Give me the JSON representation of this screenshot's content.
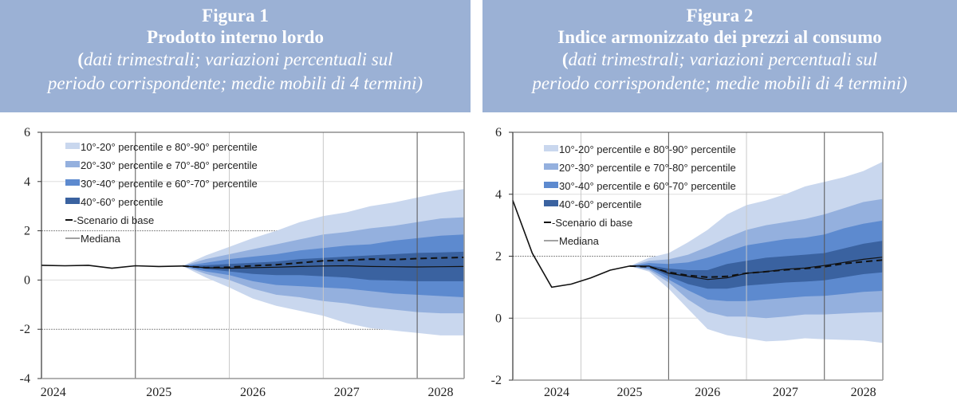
{
  "figures": [
    {
      "figure_label": "Figura 1",
      "title": "Prodotto interno lordo",
      "subtitle_line1": "dati trimestrali; variazioni percentuali sul",
      "subtitle_line2": "periodo corrispondente; medie mobili di 4 termini)"
    },
    {
      "figure_label": "Figura 2",
      "title": "Indice armonizzato dei prezzi al consumo",
      "subtitle_line1": "dati trimestrali; variazioni percentuali sul",
      "subtitle_line2": "periodo corrispondente; medie mobili di 4 termini)"
    }
  ],
  "colors": {
    "title_bg": "#9bb1d5",
    "band_10_20": "#c9d7ee",
    "band_20_30": "#94b0de",
    "band_30_40": "#5d8acf",
    "band_40_60": "#3a62a0",
    "line": "#111111"
  },
  "chart_data": [
    {
      "type": "area",
      "title": "Prodotto interno lordo",
      "xlabel": "",
      "ylabel": "",
      "ylim": [
        -4,
        6
      ],
      "yticks": [
        "-4",
        "-2",
        "0",
        "2",
        "4",
        "6"
      ],
      "xticks": [
        "2024",
        "2025",
        "2026",
        "2027",
        "2028"
      ],
      "grid": true,
      "legend_position": "top-left",
      "legend": [
        "10°-20° percentile e 80°-90° percentile",
        "20°-30° percentile e 70°-80° percentile",
        "30°-40° percentile e 60°-70° percentile",
        "40°-60° percentile",
        "- -Scenario di base",
        "Mediana"
      ],
      "x": [
        "2024Q2",
        "2024Q3",
        "2024Q4",
        "2025Q1",
        "2025Q2",
        "2025Q3",
        "2025Q4",
        "2026Q1",
        "2026Q2",
        "2026Q3",
        "2026Q4",
        "2027Q1",
        "2027Q2",
        "2027Q3",
        "2027Q4",
        "2028Q1",
        "2028Q2",
        "2028Q3",
        "2028Q4"
      ],
      "history": [
        0.6,
        0.58,
        0.6,
        0.48,
        0.58,
        0.55,
        0.57
      ],
      "fan_start_index": 6,
      "fan": {
        "p10": [
          0.57,
          0.1,
          -0.3,
          -0.75,
          -1.05,
          -1.25,
          -1.45,
          -1.75,
          -1.95,
          -2.05,
          -2.15,
          -2.25,
          -2.25
        ],
        "p20": [
          0.57,
          0.25,
          0.0,
          -0.35,
          -0.6,
          -0.7,
          -0.85,
          -0.95,
          -1.1,
          -1.2,
          -1.3,
          -1.35,
          -1.35
        ],
        "p30": [
          0.57,
          0.35,
          0.2,
          -0.05,
          -0.2,
          -0.25,
          -0.3,
          -0.35,
          -0.45,
          -0.55,
          -0.6,
          -0.65,
          -0.7
        ],
        "p40": [
          0.57,
          0.45,
          0.35,
          0.25,
          0.2,
          0.2,
          0.15,
          0.1,
          0.0,
          -0.02,
          -0.05,
          -0.05,
          -0.05
        ],
        "p60": [
          0.57,
          0.6,
          0.65,
          0.7,
          0.75,
          0.85,
          0.9,
          0.95,
          1.0,
          1.05,
          1.1,
          1.12,
          1.15
        ],
        "p70": [
          0.57,
          0.7,
          0.85,
          0.95,
          1.05,
          1.2,
          1.3,
          1.4,
          1.45,
          1.6,
          1.7,
          1.8,
          1.85
        ],
        "p80": [
          0.57,
          0.85,
          1.05,
          1.25,
          1.45,
          1.65,
          1.85,
          1.95,
          2.1,
          2.2,
          2.35,
          2.5,
          2.55
        ],
        "p90": [
          0.57,
          1.0,
          1.35,
          1.7,
          2.0,
          2.35,
          2.6,
          2.75,
          3.0,
          3.15,
          3.35,
          3.55,
          3.7
        ],
        "median": [
          0.57,
          0.5,
          0.48,
          0.5,
          0.52,
          0.55,
          0.57,
          0.58,
          0.55,
          0.54,
          0.53,
          0.54,
          0.55
        ],
        "base": [
          0.57,
          0.5,
          0.52,
          0.58,
          0.62,
          0.7,
          0.78,
          0.8,
          0.85,
          0.83,
          0.87,
          0.9,
          0.92
        ]
      }
    },
    {
      "type": "area",
      "title": "Indice armonizzato dei prezzi al consumo",
      "xlabel": "",
      "ylabel": "",
      "ylim": [
        -2,
        6
      ],
      "yticks": [
        "-2",
        "0",
        "2",
        "4",
        "6"
      ],
      "xticks": [
        "2024",
        "2025",
        "2026",
        "2027",
        "2028"
      ],
      "grid": true,
      "legend_position": "top-left",
      "legend": [
        "10°-20° percentile e 80°-90° percentile",
        "20°-30° percentile e 70°-80° percentile",
        "30°-40° percentile e 60°-70° percentile",
        "40°-60° percentile",
        "- -Scenario di base",
        "Mediana"
      ],
      "x": [
        "2024Q1",
        "2024Q2",
        "2024Q3",
        "2024Q4",
        "2025Q1",
        "2025Q2",
        "2025Q3",
        "2025Q4",
        "2026Q1",
        "2026Q2",
        "2026Q3",
        "2026Q4",
        "2027Q1",
        "2027Q2",
        "2027Q3",
        "2027Q4",
        "2028Q1",
        "2028Q2",
        "2028Q3",
        "2028Q4"
      ],
      "history": [
        3.8,
        2.1,
        1.0,
        1.1,
        1.3,
        1.55,
        1.68
      ],
      "fan_start_index": 6,
      "fan": {
        "p10": [
          1.68,
          1.5,
          0.95,
          0.3,
          -0.35,
          -0.55,
          -0.65,
          -0.75,
          -0.72,
          -0.65,
          -0.68,
          -0.7,
          -0.72,
          -0.8
        ],
        "p20": [
          1.68,
          1.55,
          1.15,
          0.6,
          0.2,
          0.05,
          0.05,
          0.0,
          0.05,
          0.12,
          0.12,
          0.15,
          0.18,
          0.2
        ],
        "p30": [
          1.68,
          1.6,
          1.25,
          0.9,
          0.6,
          0.55,
          0.55,
          0.6,
          0.65,
          0.7,
          0.72,
          0.78,
          0.85,
          0.88
        ],
        "p40": [
          1.68,
          1.65,
          1.35,
          1.1,
          0.95,
          0.95,
          1.05,
          1.1,
          1.15,
          1.18,
          1.22,
          1.32,
          1.42,
          1.48
        ],
        "p60": [
          1.68,
          1.7,
          1.6,
          1.55,
          1.55,
          1.75,
          1.85,
          1.95,
          2.0,
          2.05,
          2.1,
          2.25,
          2.4,
          2.5
        ],
        "p70": [
          1.68,
          1.78,
          1.75,
          1.8,
          1.95,
          2.15,
          2.35,
          2.45,
          2.55,
          2.6,
          2.7,
          2.9,
          3.05,
          3.15
        ],
        "p80": [
          1.68,
          1.85,
          1.9,
          2.05,
          2.3,
          2.6,
          2.85,
          3.0,
          3.1,
          3.2,
          3.35,
          3.55,
          3.75,
          3.85
        ],
        "p90": [
          1.68,
          1.95,
          2.1,
          2.45,
          2.85,
          3.35,
          3.65,
          3.8,
          4.0,
          4.25,
          4.4,
          4.55,
          4.75,
          5.05
        ],
        "median": [
          1.68,
          1.68,
          1.45,
          1.35,
          1.25,
          1.3,
          1.45,
          1.5,
          1.58,
          1.62,
          1.7,
          1.8,
          1.9,
          1.97
        ],
        "base": [
          1.68,
          1.66,
          1.48,
          1.38,
          1.32,
          1.35,
          1.45,
          1.5,
          1.56,
          1.6,
          1.66,
          1.76,
          1.82,
          1.88
        ]
      }
    }
  ]
}
